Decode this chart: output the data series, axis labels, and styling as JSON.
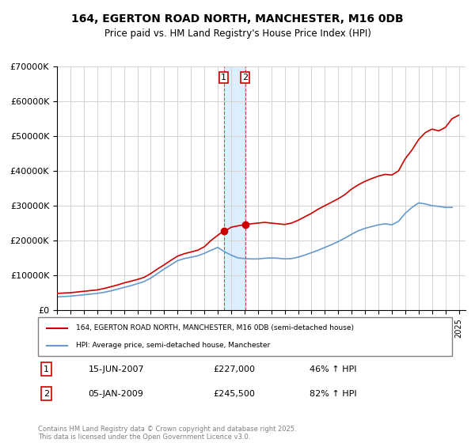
{
  "title": "164, EGERTON ROAD NORTH, MANCHESTER, M16 0DB",
  "subtitle": "Price paid vs. HM Land Registry's House Price Index (HPI)",
  "legend_line1": "164, EGERTON ROAD NORTH, MANCHESTER, M16 0DB (semi-detached house)",
  "legend_line2": "HPI: Average price, semi-detached house, Manchester",
  "annotation1_label": "1",
  "annotation1_date": "15-JUN-2007",
  "annotation1_price": "£227,000",
  "annotation1_hpi": "46% ↑ HPI",
  "annotation2_label": "2",
  "annotation2_date": "05-JAN-2009",
  "annotation2_price": "£245,500",
  "annotation2_hpi": "82% ↑ HPI",
  "footnote": "Contains HM Land Registry data © Crown copyright and database right 2025.\nThis data is licensed under the Open Government Licence v3.0.",
  "red_color": "#cc0000",
  "blue_color": "#6699cc",
  "highlight_color": "#ddeeff",
  "marker1_x": 2007.45,
  "marker2_x": 2009.04,
  "ylim": [
    0,
    700000
  ],
  "xlim_start": 1995,
  "xlim_end": 2025.5,
  "red_series": {
    "years": [
      1995,
      1995.5,
      1996,
      1996.5,
      1997,
      1997.5,
      1998,
      1998.5,
      1999,
      1999.5,
      2000,
      2000.5,
      2001,
      2001.5,
      2002,
      2002.5,
      2003,
      2003.5,
      2004,
      2004.5,
      2005,
      2005.5,
      2006,
      2006.5,
      2007,
      2007.25,
      2007.45,
      2007.75,
      2008,
      2008.5,
      2009.04,
      2009.5,
      2010,
      2010.5,
      2011,
      2011.5,
      2012,
      2012.5,
      2013,
      2013.5,
      2014,
      2014.5,
      2015,
      2015.5,
      2016,
      2016.5,
      2017,
      2017.5,
      2018,
      2018.5,
      2019,
      2019.5,
      2020,
      2020.5,
      2021,
      2021.5,
      2022,
      2022.5,
      2023,
      2023.5,
      2024,
      2024.5,
      2025
    ],
    "values": [
      48000,
      49000,
      50000,
      52000,
      54000,
      56000,
      58000,
      62000,
      67000,
      72000,
      78000,
      83000,
      88000,
      94000,
      105000,
      118000,
      130000,
      143000,
      155000,
      162000,
      167000,
      172000,
      182000,
      200000,
      215000,
      222000,
      227000,
      232000,
      238000,
      242000,
      245500,
      248000,
      250000,
      252000,
      250000,
      248000,
      246000,
      250000,
      258000,
      268000,
      278000,
      290000,
      300000,
      310000,
      320000,
      332000,
      348000,
      360000,
      370000,
      378000,
      385000,
      390000,
      388000,
      400000,
      435000,
      460000,
      490000,
      510000,
      520000,
      515000,
      525000,
      550000,
      560000
    ]
  },
  "blue_series": {
    "years": [
      1995,
      1995.5,
      1996,
      1996.5,
      1997,
      1997.5,
      1998,
      1998.5,
      1999,
      1999.5,
      2000,
      2000.5,
      2001,
      2001.5,
      2002,
      2002.5,
      2003,
      2003.5,
      2004,
      2004.5,
      2005,
      2005.5,
      2006,
      2006.5,
      2007,
      2007.5,
      2008,
      2008.5,
      2009,
      2009.5,
      2010,
      2010.5,
      2011,
      2011.5,
      2012,
      2012.5,
      2013,
      2013.5,
      2014,
      2014.5,
      2015,
      2015.5,
      2016,
      2016.5,
      2017,
      2017.5,
      2018,
      2018.5,
      2019,
      2019.5,
      2020,
      2020.5,
      2021,
      2021.5,
      2022,
      2022.5,
      2023,
      2023.5,
      2024,
      2024.5
    ],
    "values": [
      38000,
      39000,
      40000,
      42000,
      44000,
      46000,
      48000,
      51000,
      55000,
      60000,
      65000,
      70000,
      76000,
      82000,
      92000,
      105000,
      118000,
      130000,
      142000,
      148000,
      152000,
      156000,
      163000,
      172000,
      180000,
      168000,
      158000,
      150000,
      148000,
      147000,
      147000,
      149000,
      150000,
      149000,
      147000,
      148000,
      152000,
      158000,
      165000,
      172000,
      180000,
      188000,
      197000,
      207000,
      218000,
      228000,
      235000,
      240000,
      245000,
      248000,
      245000,
      255000,
      278000,
      295000,
      308000,
      305000,
      300000,
      298000,
      295000,
      295000
    ]
  },
  "xticks": [
    1995,
    1996,
    1997,
    1998,
    1999,
    2000,
    2001,
    2002,
    2003,
    2004,
    2005,
    2006,
    2007,
    2008,
    2009,
    2010,
    2011,
    2012,
    2013,
    2014,
    2015,
    2016,
    2017,
    2018,
    2019,
    2020,
    2021,
    2022,
    2023,
    2024,
    2025
  ],
  "yticks": [
    0,
    100000,
    200000,
    300000,
    400000,
    500000,
    600000,
    700000
  ]
}
